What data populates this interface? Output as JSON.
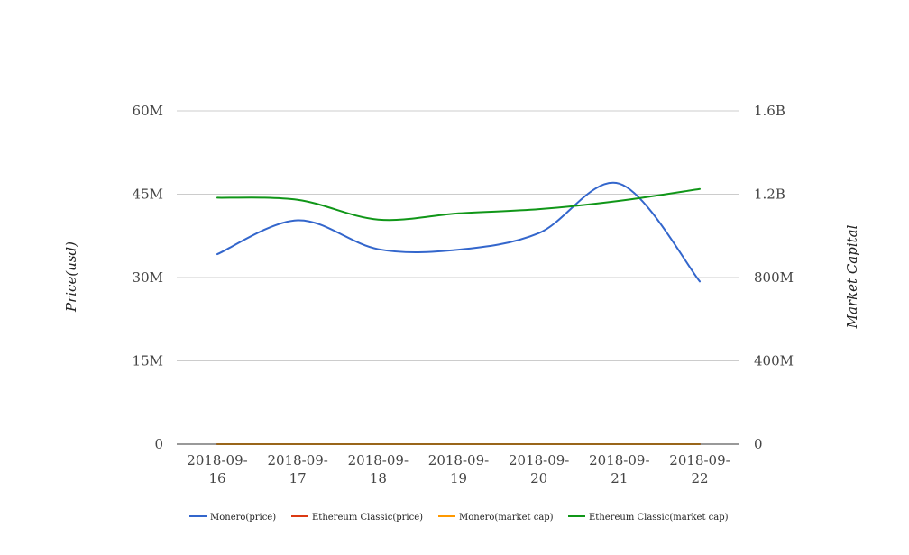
{
  "chart_data": {
    "type": "line",
    "ylabel": "Price(usd)",
    "y2label": "Market Capital",
    "categories": [
      [
        "2018-09-",
        "16"
      ],
      [
        "2018-09-",
        "17"
      ],
      [
        "2018-09-",
        "18"
      ],
      [
        "2018-09-",
        "19"
      ],
      [
        "2018-09-",
        "20"
      ],
      [
        "2018-09-",
        "21"
      ],
      [
        "2018-09-",
        "22"
      ]
    ],
    "ylim": [
      0,
      60000000
    ],
    "y2lim": [
      0,
      1600000000
    ],
    "yticks": [
      0,
      15000000,
      30000000,
      45000000,
      60000000
    ],
    "yticklabels": [
      "0",
      "15M",
      "30M",
      "45M",
      "60M"
    ],
    "y2ticks": [
      0,
      400000000,
      800000000,
      1200000000,
      1600000000
    ],
    "y2ticklabels": [
      "0",
      "400M",
      "800M",
      "1.2B",
      "1.6B"
    ],
    "grid": true,
    "legend_position": "bottom",
    "series": [
      {
        "name": "Monero(price)",
        "axis": "left",
        "color": "#3366cc",
        "values": [
          34200000,
          40300000,
          35100000,
          35000000,
          38000000,
          46900000,
          29300000
        ]
      },
      {
        "name": "Ethereum Classic(price)",
        "axis": "left",
        "color": "#dc3912",
        "values": [
          0,
          0,
          0,
          0,
          0,
          0,
          0
        ]
      },
      {
        "name": "Monero(market cap)",
        "axis": "right",
        "color": "#ff9900",
        "values": [
          0,
          0,
          0,
          0,
          0,
          0,
          0
        ]
      },
      {
        "name": "Ethereum Classic(market cap)",
        "axis": "right",
        "color": "#109618",
        "values": [
          1183000000,
          1173000000,
          1078000000,
          1108000000,
          1128000000,
          1168000000,
          1225000000
        ]
      }
    ]
  }
}
